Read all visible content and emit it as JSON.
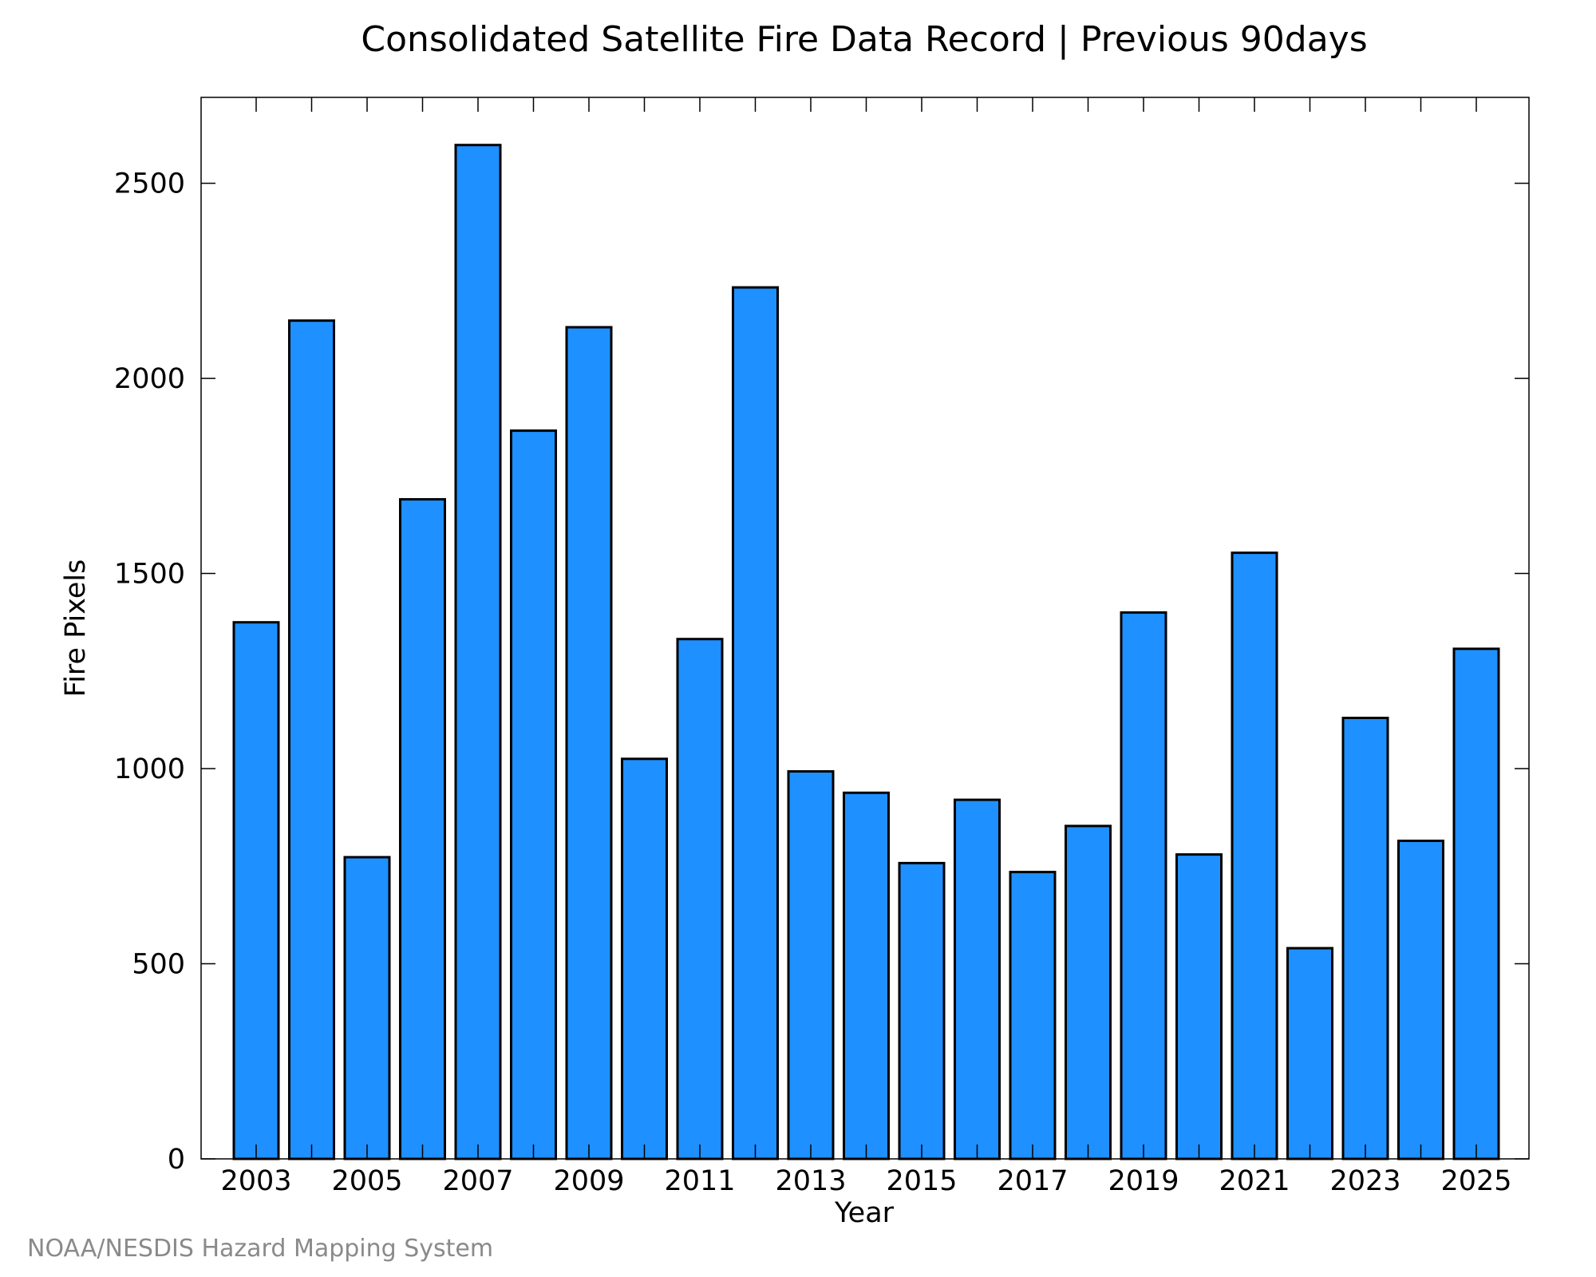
{
  "chart_data": {
    "type": "bar",
    "title": "Consolidated Satellite Fire Data Record | Previous 90days",
    "xlabel": "Year",
    "ylabel": "Fire Pixels",
    "credit": "NOAA/NESDIS Hazard Mapping System",
    "categories": [
      "2003",
      "2004",
      "2005",
      "2006",
      "2007",
      "2008",
      "2009",
      "2010",
      "2011",
      "2012",
      "2013",
      "2014",
      "2015",
      "2016",
      "2017",
      "2018",
      "2019",
      "2020",
      "2021",
      "2022",
      "2023",
      "2024",
      "2025"
    ],
    "values": [
      1375,
      2148,
      773,
      1690,
      2598,
      1866,
      2131,
      1025,
      1332,
      2233,
      993,
      938,
      758,
      920,
      735,
      853,
      1400,
      780,
      1553,
      540,
      1130,
      815,
      1307
    ],
    "x_tick_labels": [
      "2003",
      "2005",
      "2007",
      "2009",
      "2011",
      "2013",
      "2015",
      "2017",
      "2019",
      "2021",
      "2023",
      "2025"
    ],
    "y_ticks": [
      0,
      500,
      1000,
      1500,
      2000,
      2500
    ],
    "ylim": [
      0,
      2720
    ],
    "bar_color": "#1e90ff",
    "edge_color": "#000000",
    "grid": false,
    "legend": "none"
  }
}
